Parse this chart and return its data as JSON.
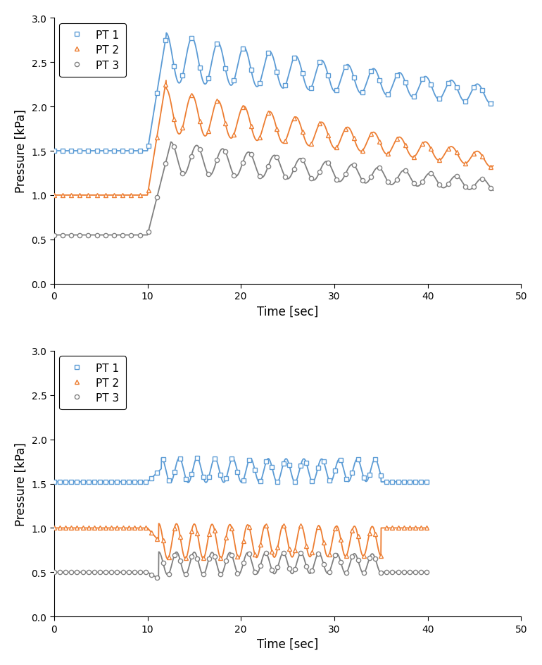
{
  "colors": {
    "pt1": "#5B9BD5",
    "pt2": "#ED7D31",
    "pt3": "#808080"
  },
  "xlabel": "Time [sec]",
  "ylabel": "Pressure [kPa]",
  "legend_labels": [
    "PT 1",
    "PT 2",
    "PT 3"
  ],
  "yticks": [
    0.0,
    0.5,
    1.0,
    1.5,
    2.0,
    2.5,
    3.0
  ],
  "xticks": [
    0,
    10,
    20,
    30,
    40,
    50
  ],
  "xlim": [
    0,
    50
  ],
  "ylim": [
    0.0,
    3.0
  ]
}
